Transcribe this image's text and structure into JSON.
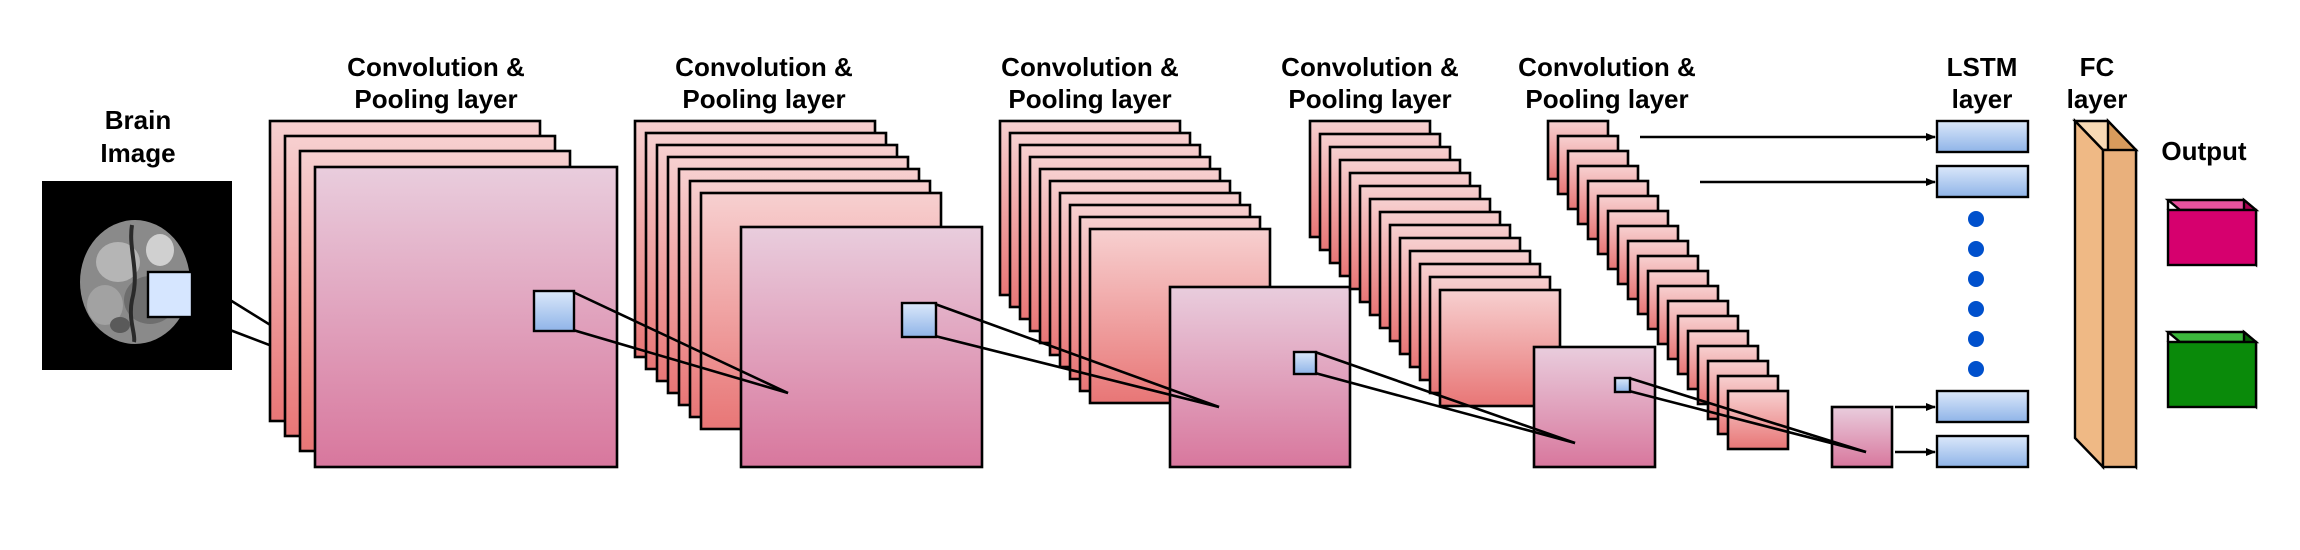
{
  "labels": {
    "input": [
      "Brain",
      "Image"
    ],
    "conv_layers": [
      [
        "Convolution &",
        "Pooling layer"
      ],
      [
        "Convolution &",
        "Pooling layer"
      ],
      [
        "Convolution &",
        "Pooling layer"
      ],
      [
        "Convolution &",
        "Pooling layer"
      ],
      [
        "Convolution &",
        "Pooling layer"
      ]
    ],
    "lstm": [
      "LSTM",
      "layer"
    ],
    "fc": [
      "FC",
      "layer"
    ],
    "output": "Output"
  },
  "colors": {
    "map_top": "#f7d0d0",
    "map_bottom": "#e87878",
    "front_top": "#e8cbdc",
    "front_bottom": "#d8789e",
    "kernel": "#a9c6ee",
    "lstm_cell": "#bcd3f2",
    "fc": "#f1c08d",
    "dot": "#0050cc",
    "output_magenta": "#d6006e",
    "output_green": "#0a8a0a"
  }
}
